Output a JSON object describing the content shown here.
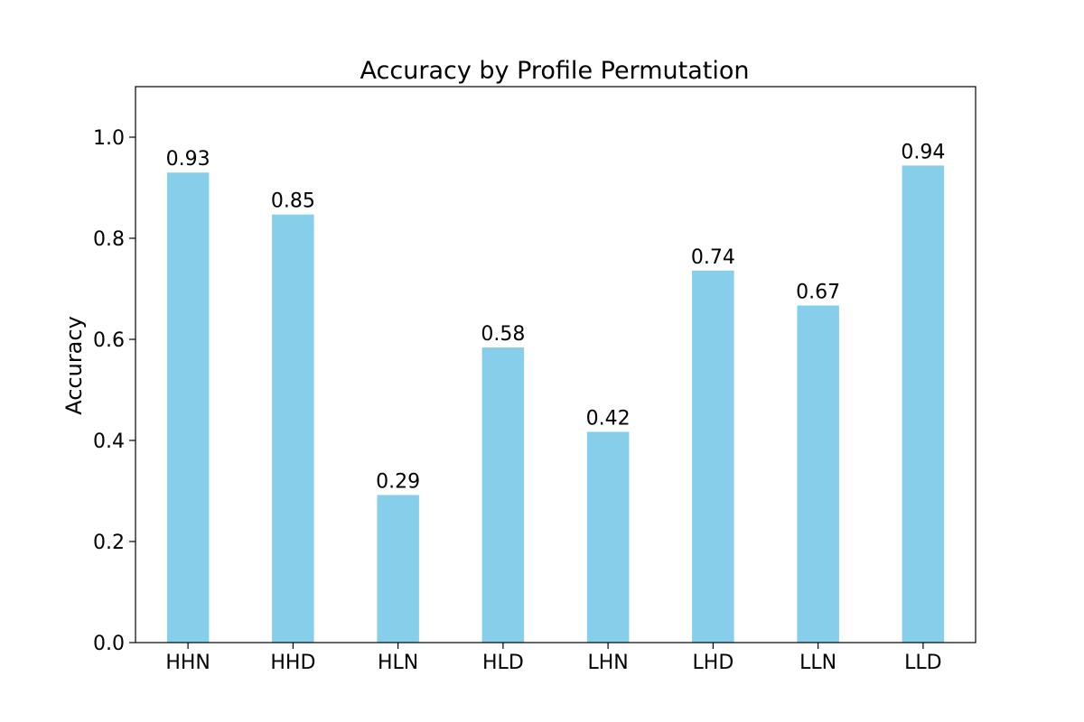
{
  "chart_data": {
    "type": "bar",
    "title": "Accuracy by Profile Permutation",
    "xlabel": "",
    "ylabel": "Accuracy",
    "categories": [
      "HHN",
      "HHD",
      "HLN",
      "HLD",
      "LHN",
      "LHD",
      "LLN",
      "LLD"
    ],
    "values": [
      0.93,
      0.847,
      0.292,
      0.584,
      0.417,
      0.736,
      0.667,
      0.944
    ],
    "value_labels": [
      "0.93",
      "0.85",
      "0.29",
      "0.58",
      "0.42",
      "0.74",
      "0.67",
      "0.94"
    ],
    "ylim": [
      0,
      1.1
    ],
    "yticks": [
      0.0,
      0.2,
      0.4,
      0.6,
      0.8,
      1.0
    ],
    "ytick_labels": [
      "0.0",
      "0.2",
      "0.4",
      "0.6",
      "0.8",
      "1.0"
    ],
    "grid": false,
    "bar_color": "#87ceeb"
  }
}
